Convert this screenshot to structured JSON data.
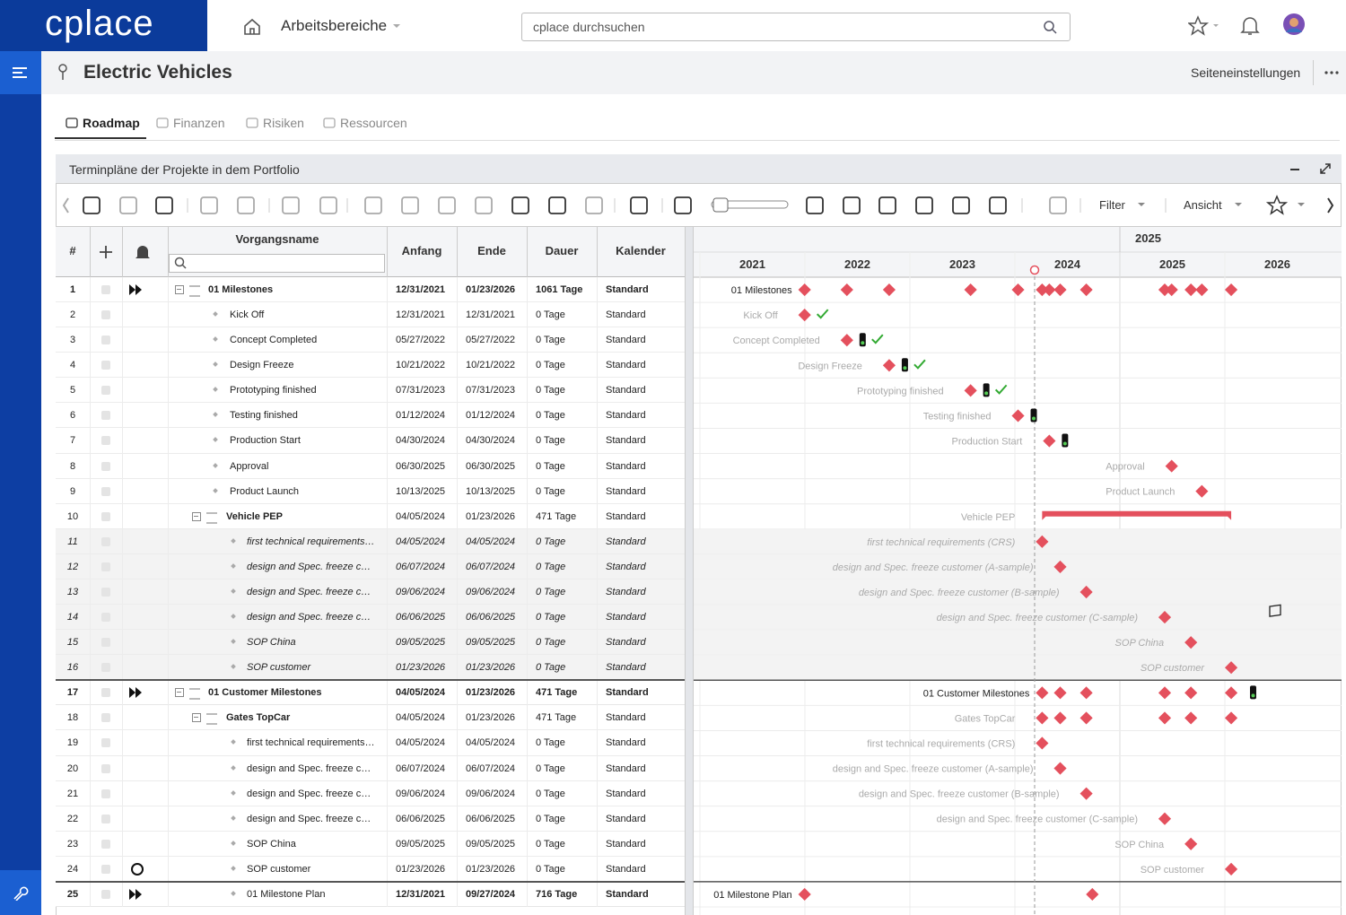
{
  "header": {
    "logo": "cplace",
    "nav": "Arbeitsbereiche",
    "search": "cplace durchsuchen"
  },
  "page": {
    "title": "Electric Vehicles",
    "settings": "Seiteneinstellungen"
  },
  "tabs": [
    "Roadmap",
    "Finanzen",
    "Risiken",
    "Ressourcen"
  ],
  "panel": {
    "title": "Terminpläne der Projekte in dem Portfolio",
    "toolbar": [
      "Filter",
      "Ansicht"
    ]
  },
  "table": {
    "columns": [
      "#",
      "Vorgangsname",
      "Anfang",
      "Ende",
      "Dauer",
      "Kalender"
    ],
    "rows": [
      {
        "num": 1,
        "name": "01 Milestones",
        "start": "12/31/2021",
        "end": "01/23/2026",
        "duration": "1061 Tage",
        "calendar": "Standard",
        "level": 0
      },
      {
        "num": 2,
        "name": "Kick Off",
        "start": "12/31/2021",
        "end": "12/31/2021",
        "duration": "0 Tage",
        "calendar": "Standard",
        "level": 1
      },
      {
        "num": 3,
        "name": "Concept Completed",
        "start": "05/27/2022",
        "end": "05/27/2022",
        "duration": "0 Tage",
        "calendar": "Standard",
        "level": 1
      },
      {
        "num": 4,
        "name": "Design Freeze",
        "start": "10/21/2022",
        "end": "10/21/2022",
        "duration": "0 Tage",
        "calendar": "Standard",
        "level": 1
      },
      {
        "num": 5,
        "name": "Prototyping finished",
        "start": "07/31/2023",
        "end": "07/31/2023",
        "duration": "0 Tage",
        "calendar": "Standard",
        "level": 1
      },
      {
        "num": 6,
        "name": "Testing finished",
        "start": "01/12/2024",
        "end": "01/12/2024",
        "duration": "0 Tage",
        "calendar": "Standard",
        "level": 1
      },
      {
        "num": 7,
        "name": "Production Start",
        "start": "04/30/2024",
        "end": "04/30/2024",
        "duration": "0 Tage",
        "calendar": "Standard",
        "level": 1
      },
      {
        "num": 8,
        "name": "Approval",
        "start": "06/30/2025",
        "end": "06/30/2025",
        "duration": "0 Tage",
        "calendar": "Standard",
        "level": 1
      },
      {
        "num": 9,
        "name": "Product Launch",
        "start": "10/13/2025",
        "end": "10/13/2025",
        "duration": "0 Tage",
        "calendar": "Standard",
        "level": 1
      },
      {
        "num": 10,
        "name": "Vehicle PEP",
        "start": "04/05/2024",
        "end": "01/23/2026",
        "duration": "471 Tage",
        "calendar": "Standard",
        "level": 1
      },
      {
        "num": 11,
        "name": "first technical requirements (CRS)",
        "start": "04/05/2024",
        "end": "04/05/2024",
        "duration": "0 Tage",
        "calendar": "Standard",
        "level": 2
      },
      {
        "num": 12,
        "name": "design and Spec. freeze customer (A-sample)",
        "start": "06/07/2024",
        "end": "06/07/2024",
        "duration": "0 Tage",
        "calendar": "Standard",
        "level": 2
      },
      {
        "num": 13,
        "name": "design and Spec. freeze customer (B-sample)",
        "start": "09/06/2024",
        "end": "09/06/2024",
        "duration": "0 Tage",
        "calendar": "Standard",
        "level": 2
      },
      {
        "num": 14,
        "name": "design and Spec. freeze customer (C-sample)",
        "start": "06/06/2025",
        "end": "06/06/2025",
        "duration": "0 Tage",
        "calendar": "Standard",
        "level": 2
      },
      {
        "num": 15,
        "name": "SOP China",
        "start": "09/05/2025",
        "end": "09/05/2025",
        "duration": "0 Tage",
        "calendar": "Standard",
        "level": 2
      },
      {
        "num": 16,
        "name": "SOP customer",
        "start": "01/23/2026",
        "end": "01/23/2026",
        "duration": "0 Tage",
        "calendar": "Standard",
        "level": 2
      },
      {
        "num": 17,
        "name": "01 Customer Milestones",
        "start": "04/05/2024",
        "end": "01/23/2026",
        "duration": "471 Tage",
        "calendar": "Standard",
        "level": 0
      },
      {
        "num": 18,
        "name": "Gates TopCar",
        "start": "04/05/2024",
        "end": "01/23/2026",
        "duration": "471 Tage",
        "calendar": "Standard",
        "level": 1
      },
      {
        "num": 19,
        "name": "first technical requirements (CRS)",
        "start": "04/05/2024",
        "end": "04/05/2024",
        "duration": "0 Tage",
        "calendar": "Standard",
        "level": 2
      },
      {
        "num": 20,
        "name": "design and Spec. freeze customer (A-sample)",
        "start": "06/07/2024",
        "end": "06/07/2024",
        "duration": "0 Tage",
        "calendar": "Standard",
        "level": 2
      },
      {
        "num": 21,
        "name": "design and Spec. freeze customer (B-sample)",
        "start": "09/06/2024",
        "end": "09/06/2024",
        "duration": "0 Tage",
        "calendar": "Standard",
        "level": 2
      },
      {
        "num": 22,
        "name": "design and Spec. freeze customer (C-sample)",
        "start": "06/06/2025",
        "end": "06/06/2025",
        "duration": "0 Tage",
        "calendar": "Standard",
        "level": 2
      },
      {
        "num": 23,
        "name": "SOP China",
        "start": "09/05/2025",
        "end": "09/05/2025",
        "duration": "0 Tage",
        "calendar": "Standard",
        "level": 2
      },
      {
        "num": 24,
        "name": "SOP customer",
        "start": "01/23/2026",
        "end": "01/23/2026",
        "duration": "0 Tage",
        "calendar": "Standard",
        "level": 2
      },
      {
        "num": 25,
        "name": "01 Milestone Plan",
        "start": "12/31/2021",
        "end": "09/27/2024",
        "duration": "716 Tage",
        "calendar": "Standard",
        "level": 0
      }
    ]
  },
  "gantt": {
    "top_year": "2025",
    "years": [
      "2021",
      "2022",
      "2023",
      "2024",
      "2025",
      "2026"
    ]
  }
}
